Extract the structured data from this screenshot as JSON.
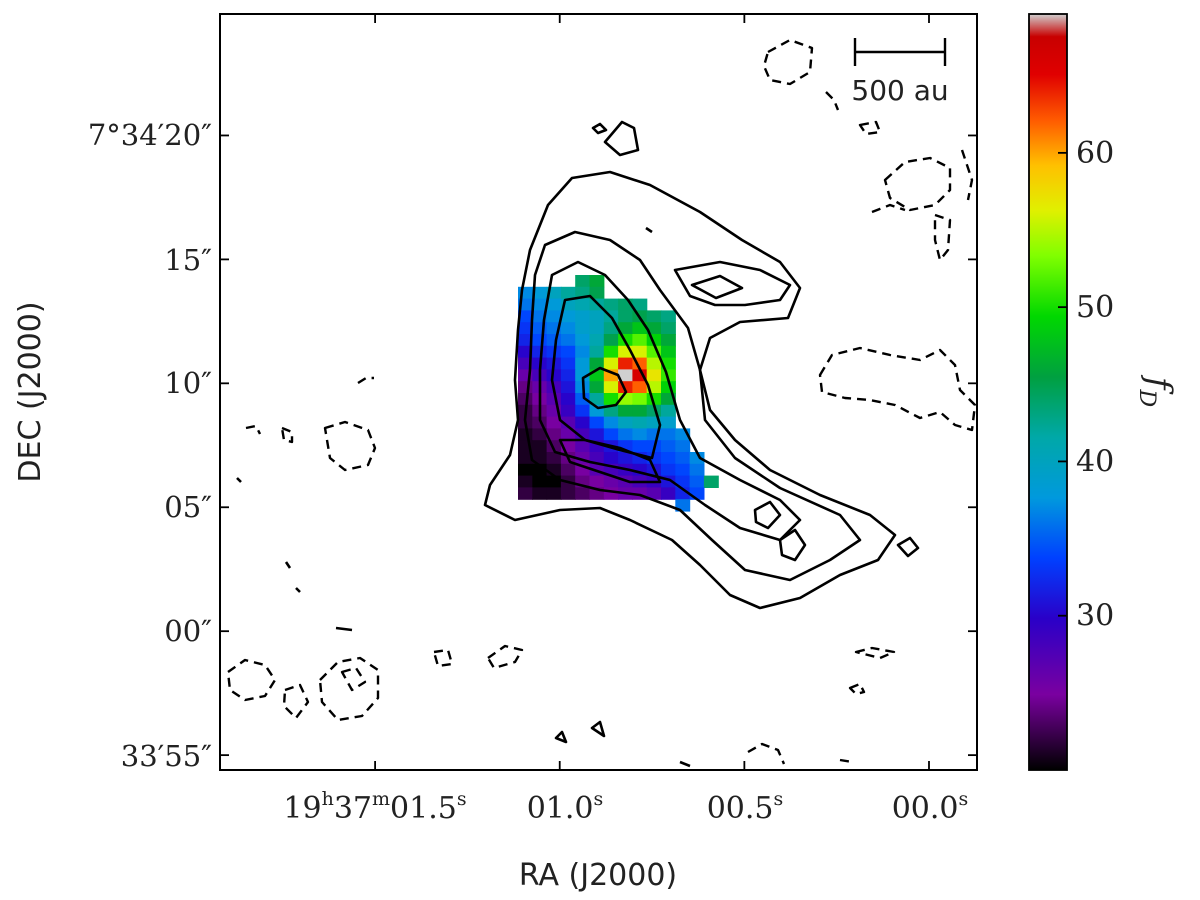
{
  "chart_data": {
    "type": "heatmap",
    "xlabel": "RA (J2000)",
    "ylabel": "DEC (J2000)",
    "x_ticks": [
      {
        "label": "19h37m01.5s",
        "parts": [
          "19",
          "h",
          "37",
          "m",
          "01.5",
          "s"
        ]
      },
      {
        "label": "01.0s",
        "parts": [
          "01.0",
          "s"
        ]
      },
      {
        "label": "00.5s",
        "parts": [
          "00.5",
          "s"
        ]
      },
      {
        "label": "00.0s",
        "parts": [
          "00.0",
          "s"
        ]
      }
    ],
    "y_ticks": [
      {
        "label": "7°34′20″",
        "dec_offset_arcsec": 20
      },
      {
        "label": "15″",
        "dec_offset_arcsec": 15
      },
      {
        "label": "10″",
        "dec_offset_arcsec": 10
      },
      {
        "label": "05″",
        "dec_offset_arcsec": 5
      },
      {
        "label": "00″",
        "dec_offset_arcsec": 0
      },
      {
        "label": "33′55″",
        "dec_offset_arcsec": -5
      }
    ],
    "ra_ticks_sec": [
      1.5,
      1.0,
      0.5,
      0.0
    ],
    "xlim_ra_sec": [
      1.92,
      -0.13
    ],
    "ylim_dec_arcsec": [
      -5.6,
      24.9
    ],
    "scalebar_label": "500 au",
    "colorbar": {
      "label": "f_D",
      "label_main": "f",
      "label_sub": "D",
      "range": [
        20,
        69
      ],
      "ticks": [
        30,
        40,
        50,
        60
      ],
      "colormap": "nipy_spectral"
    },
    "map": {
      "cols": 14,
      "rows": 21,
      "values": [
        [
          null,
          null,
          null,
          null,
          44,
          46,
          null,
          null,
          null,
          null,
          null,
          null,
          null,
          null
        ],
        [
          37,
          38,
          40,
          42,
          43,
          45,
          null,
          null,
          null,
          null,
          null,
          null,
          null,
          null
        ],
        [
          36,
          37,
          38,
          40,
          41,
          42,
          43,
          44,
          43,
          null,
          null,
          null,
          null,
          null
        ],
        [
          34,
          36,
          37,
          38,
          39,
          40,
          42,
          44,
          45,
          44,
          43,
          null,
          null,
          null
        ],
        [
          33,
          35,
          36,
          37,
          39,
          40,
          43,
          46,
          48,
          46,
          44,
          null,
          null,
          null
        ],
        [
          32,
          34,
          35,
          36,
          38,
          41,
          45,
          50,
          52,
          49,
          46,
          null,
          null,
          null
        ],
        [
          30,
          32,
          33,
          34,
          37,
          42,
          50,
          56,
          56,
          52,
          48,
          null,
          null,
          null
        ],
        [
          28,
          30,
          31,
          33,
          38,
          46,
          56,
          64,
          62,
          55,
          50,
          null,
          null,
          null
        ],
        [
          26,
          28,
          30,
          32,
          38,
          48,
          60,
          69,
          66,
          57,
          51,
          null,
          null,
          null
        ],
        [
          24,
          26,
          28,
          31,
          37,
          46,
          56,
          64,
          62,
          55,
          49,
          null,
          null,
          null
        ],
        [
          23,
          25,
          27,
          30,
          35,
          42,
          50,
          54,
          53,
          50,
          46,
          null,
          null,
          null
        ],
        [
          22,
          24,
          26,
          29,
          33,
          38,
          43,
          46,
          46,
          44,
          42,
          null,
          null,
          null
        ],
        [
          22,
          23,
          25,
          27,
          30,
          34,
          37,
          40,
          41,
          40,
          39,
          null,
          null,
          null
        ],
        [
          21,
          22,
          24,
          26,
          28,
          31,
          34,
          36,
          37,
          36,
          36,
          37,
          null,
          null
        ],
        [
          21,
          21,
          23,
          25,
          27,
          29,
          31,
          33,
          34,
          34,
          35,
          36,
          null,
          null
        ],
        [
          21,
          21,
          22,
          24,
          26,
          28,
          30,
          31,
          32,
          33,
          34,
          35,
          37,
          null
        ],
        [
          20,
          20,
          21,
          23,
          25,
          27,
          28,
          29,
          30,
          31,
          33,
          34,
          36,
          null
        ],
        [
          21,
          20,
          20,
          22,
          24,
          25,
          26,
          27,
          28,
          29,
          31,
          33,
          35,
          44
        ],
        [
          22,
          21,
          21,
          22,
          23,
          24,
          25,
          26,
          26,
          27,
          29,
          32,
          34,
          null
        ],
        [
          null,
          null,
          null,
          null,
          null,
          null,
          null,
          null,
          null,
          null,
          null,
          36,
          null,
          null
        ],
        [
          null,
          null,
          null,
          null,
          null,
          null,
          null,
          null,
          null,
          null,
          null,
          null,
          null,
          null
        ]
      ]
    }
  }
}
